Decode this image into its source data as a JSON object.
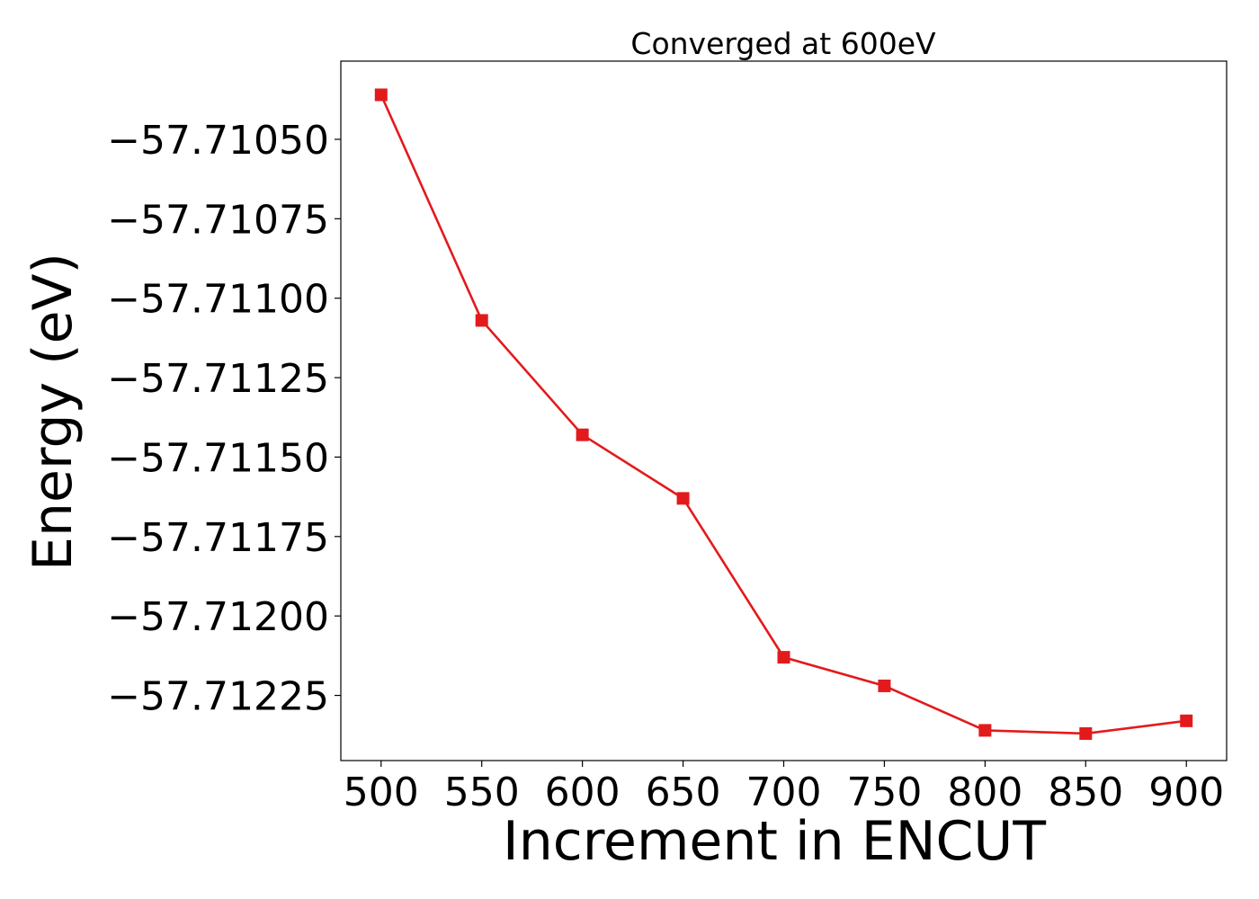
{
  "chart_data": {
    "type": "line",
    "title": "Converged at 600eV",
    "xlabel": "Increment in ENCUT",
    "ylabel": "Energy (eV)",
    "x": [
      500,
      550,
      600,
      650,
      700,
      750,
      800,
      850,
      900
    ],
    "series": [
      {
        "values": [
          -57.71036,
          -57.71107,
          -57.71143,
          -57.71163,
          -57.71213,
          -57.71222,
          -57.71236,
          -57.71237,
          -57.71233
        ],
        "color": "#e31a1c",
        "marker": "square"
      }
    ],
    "xlim": [
      480,
      920
    ],
    "ylim": [
      -57.712455,
      -57.710254
    ],
    "xticks": [
      500,
      550,
      600,
      650,
      700,
      750,
      800,
      850,
      900
    ],
    "xtick_labels": [
      "500",
      "550",
      "600",
      "650",
      "700",
      "750",
      "800",
      "850",
      "900"
    ],
    "yticks": [
      -57.7105,
      -57.71075,
      -57.711,
      -57.71125,
      -57.7115,
      -57.71175,
      -57.712,
      -57.71225
    ],
    "ytick_labels": [
      "−57.71050",
      "−57.71075",
      "−57.71100",
      "−57.71125",
      "−57.71150",
      "−57.71175",
      "−57.71200",
      "−57.71225"
    ],
    "grid": false,
    "legend": "none"
  }
}
